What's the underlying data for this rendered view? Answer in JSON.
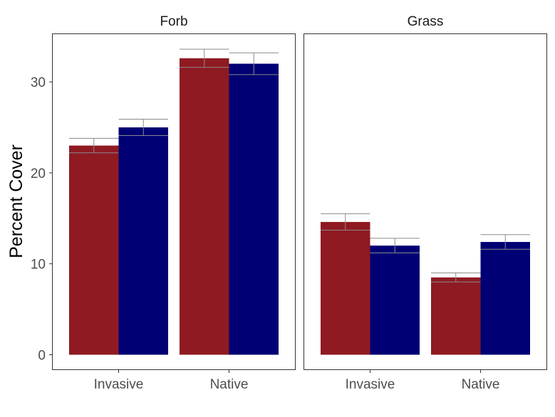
{
  "chart_data": {
    "type": "bar",
    "ylabel": "Percent Cover",
    "xlabel": "",
    "ylim": [
      0,
      35
    ],
    "yticks": [
      0,
      10,
      20,
      30
    ],
    "categories": [
      "Invasive",
      "Native"
    ],
    "grid": false,
    "legend": "none",
    "series_colors": [
      "#8f1a22",
      "#000074"
    ],
    "panels": [
      {
        "label": "Forb",
        "bars": [
          {
            "category": "Invasive",
            "series": 0,
            "value": 23.0,
            "se": 0.8
          },
          {
            "category": "Invasive",
            "series": 1,
            "value": 25.0,
            "se": 0.9
          },
          {
            "category": "Native",
            "series": 0,
            "value": 32.6,
            "se": 1.0
          },
          {
            "category": "Native",
            "series": 1,
            "value": 32.0,
            "se": 1.2
          }
        ]
      },
      {
        "label": "Grass",
        "bars": [
          {
            "category": "Invasive",
            "series": 0,
            "value": 14.6,
            "se": 0.9
          },
          {
            "category": "Invasive",
            "series": 1,
            "value": 12.0,
            "se": 0.8
          },
          {
            "category": "Native",
            "series": 0,
            "value": 8.5,
            "se": 0.5
          },
          {
            "category": "Native",
            "series": 1,
            "value": 12.4,
            "se": 0.8
          }
        ]
      }
    ]
  }
}
